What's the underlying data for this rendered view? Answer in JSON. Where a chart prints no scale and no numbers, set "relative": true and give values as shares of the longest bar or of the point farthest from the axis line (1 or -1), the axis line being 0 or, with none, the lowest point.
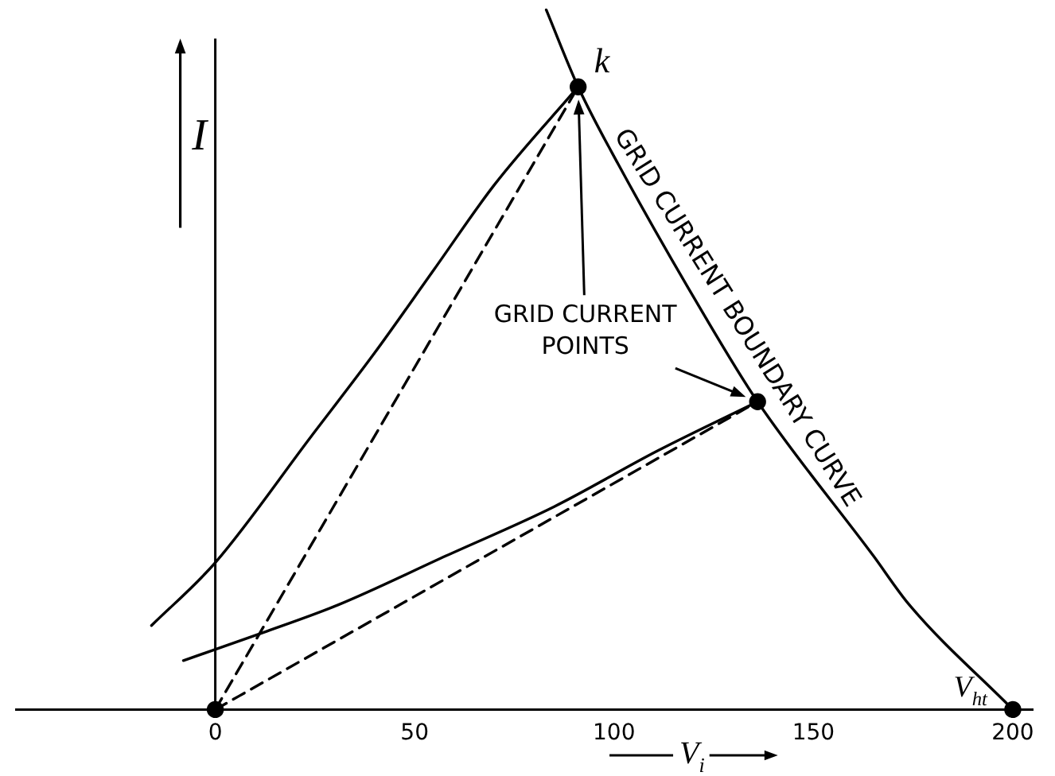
{
  "chart_data": {
    "type": "line",
    "relative": true,
    "xlabel": "V$_{i}$",
    "ylabel": "I",
    "xlim": [
      -50,
      205
    ],
    "xticks": [
      0,
      50,
      100,
      150,
      200
    ],
    "grid": false,
    "legend": false,
    "tick_labels": "x",
    "ref_lines": [
      {
        "axis": "x",
        "value": 0,
        "color": "#000000",
        "line_style": "solid"
      }
    ],
    "series": [
      {
        "type": "line",
        "name": "GRID CURRENT BOUNDARY CURVE",
        "color": "#000000",
        "x": [
          83,
          91,
          101,
          123,
          136,
          165,
          174,
          200
        ],
        "values": [
          1,
          0.89,
          0.78,
          0.56,
          0.44,
          0.22,
          0.15,
          0
        ]
      },
      {
        "type": "line",
        "color": "#000000",
        "x": [
          -16,
          0,
          24,
          40,
          55,
          70,
          91
        ],
        "values": [
          0.12,
          0.21,
          0.39,
          0.51,
          0.63,
          0.75,
          0.89
        ]
      },
      {
        "type": "line",
        "color": "#000000",
        "x": [
          -8,
          12,
          31,
          58,
          85,
          111,
          136
        ],
        "values": [
          0.07,
          0.11,
          0.15,
          0.22,
          0.29,
          0.37,
          0.44
        ]
      },
      {
        "type": "line",
        "line_style": "dashed",
        "color": "#000000",
        "x": [
          0,
          91
        ],
        "values": [
          0,
          0.89
        ]
      },
      {
        "type": "line",
        "line_style": "dashed",
        "color": "#000000",
        "x": [
          0,
          136
        ],
        "values": [
          0,
          0.44
        ]
      },
      {
        "type": "scatter",
        "marker": "circle",
        "color": "#000000",
        "x": [
          0,
          91,
          136,
          200
        ],
        "values": [
          0,
          0.89,
          0.44,
          0
        ]
      }
    ],
    "annotations": [
      {
        "text": "k",
        "x": 91,
        "y": 0.89
      },
      "GRID CURRENT POINTS",
      {
        "text": "V$_{ht}$",
        "x": 200,
        "y": 0
      }
    ]
  }
}
